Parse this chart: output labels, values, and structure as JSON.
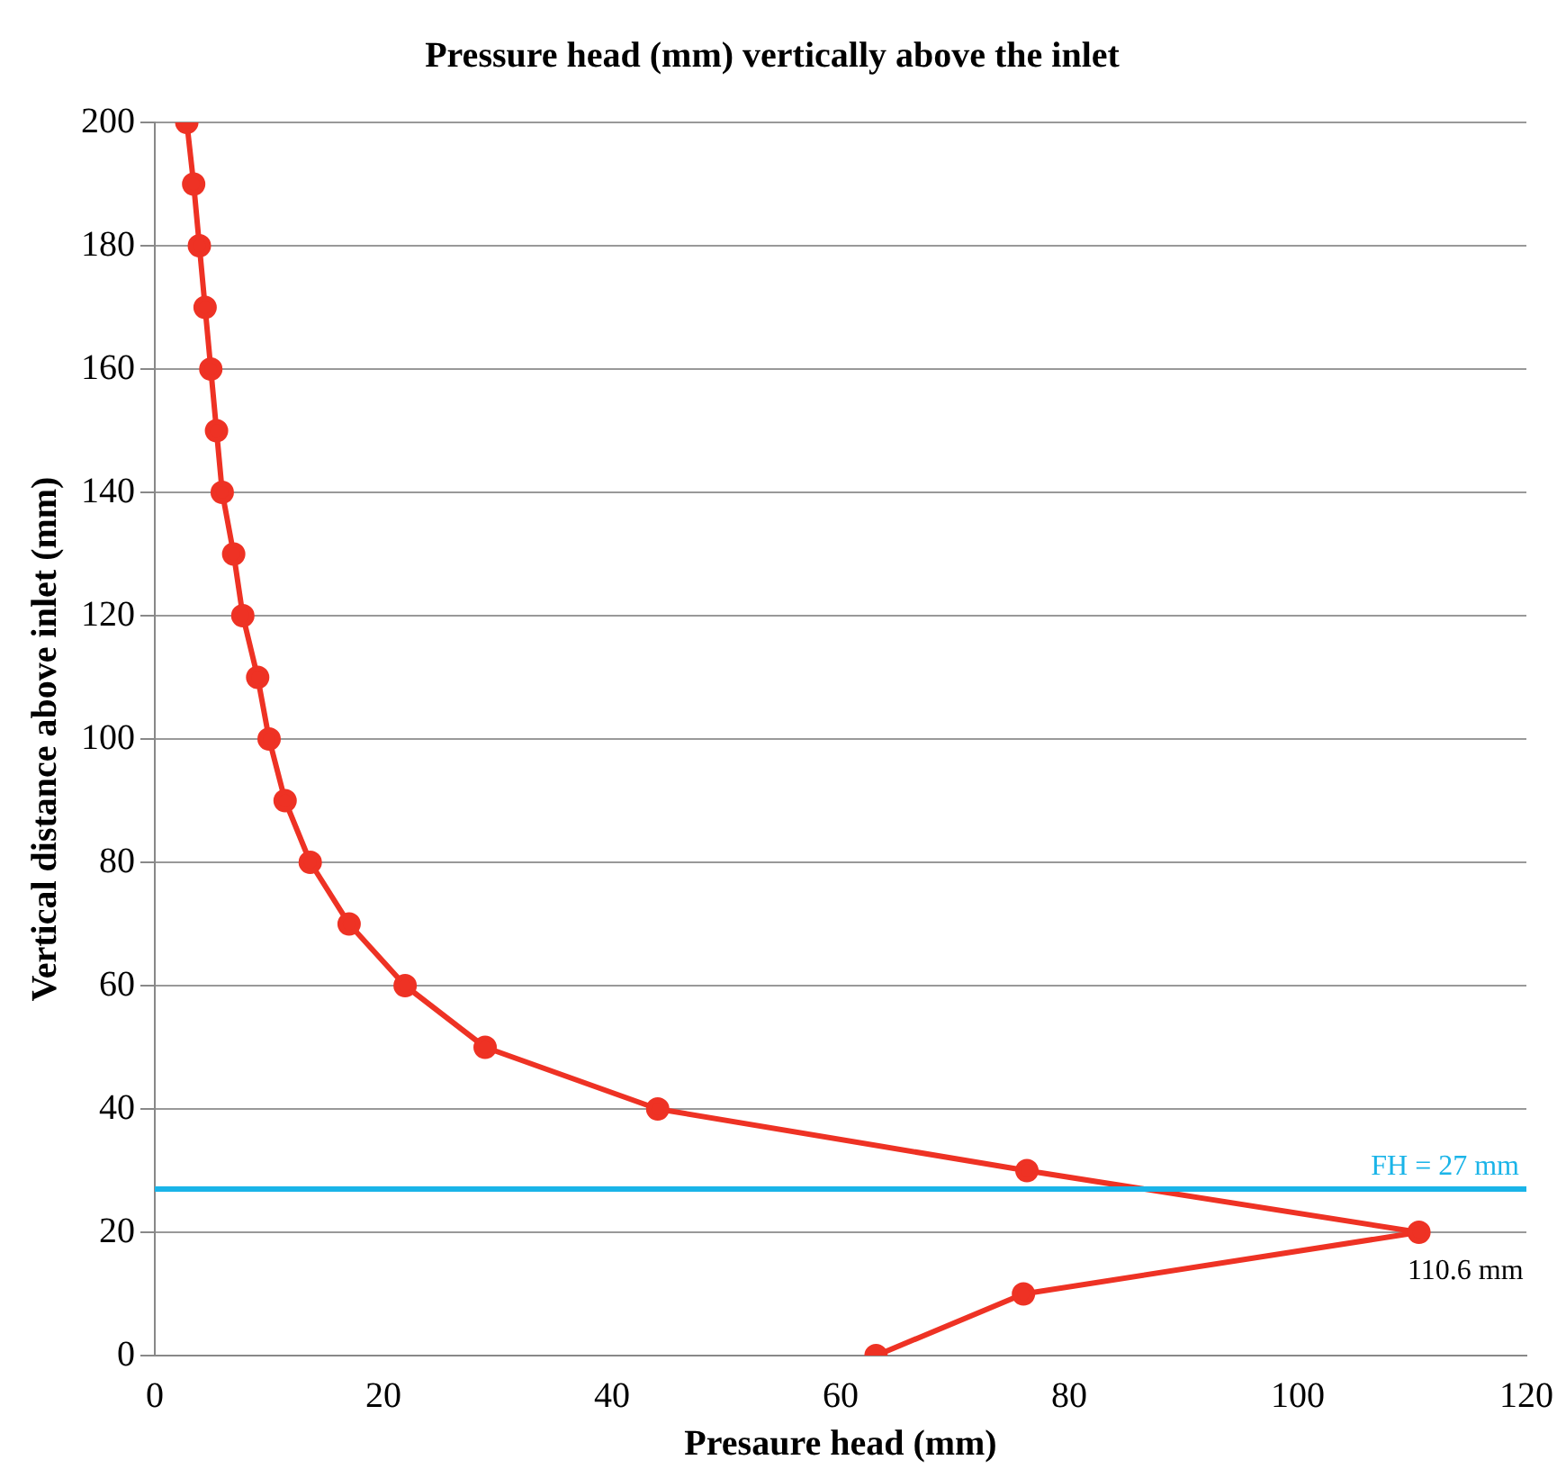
{
  "chart_data": {
    "type": "line",
    "title": "Pressure head (mm) vertically above the inlet",
    "xlabel": "Presaure head (mm)",
    "ylabel": "Vertical distance above inlet (mm)",
    "x": [
      2.8,
      3.4,
      3.9,
      4.4,
      4.9,
      5.4,
      5.9,
      6.9,
      7.7,
      9.0,
      10.0,
      11.4,
      13.6,
      17.0,
      21.9,
      28.9,
      44.0,
      76.3,
      110.6,
      76.0,
      63.1
    ],
    "series": [
      {
        "color": "#ee3224",
        "values": [
          200,
          190,
          180,
          170,
          160,
          150,
          140,
          130,
          120,
          110,
          100,
          90,
          80,
          70,
          60,
          50,
          40,
          30,
          20,
          10,
          0
        ]
      }
    ],
    "xlim": [
      0,
      120
    ],
    "xticks": [
      0,
      20,
      40,
      60,
      80,
      100,
      120
    ],
    "ylim": [
      0,
      200
    ],
    "yticks": [
      0,
      20,
      40,
      60,
      80,
      100,
      120,
      140,
      160,
      180,
      200
    ],
    "grid": "y",
    "legend": false,
    "marker": "circle",
    "line_style": "solid",
    "ref_lines": [
      {
        "axis": "y",
        "value": 27,
        "label": "FH = 27 mm",
        "color": "#1ab4e8"
      }
    ],
    "annotations": [
      {
        "text": "110.6 mm",
        "x": 110.6,
        "y": 20
      }
    ]
  }
}
